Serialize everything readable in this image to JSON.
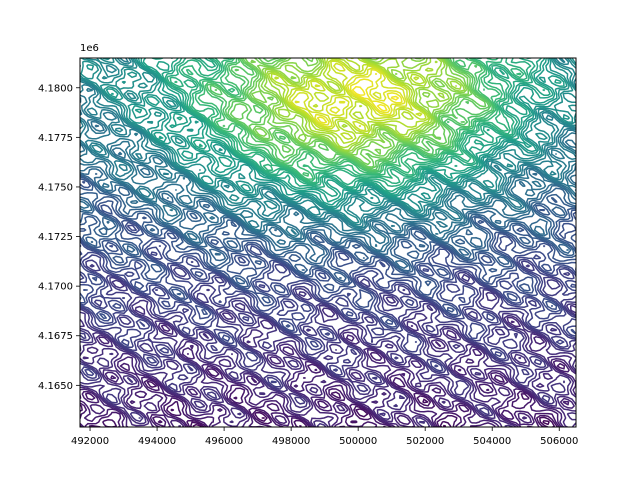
{
  "chart_data": {
    "type": "contour",
    "title": "",
    "xlabel": "",
    "ylabel": "",
    "xlim": [
      491700,
      506500
    ],
    "ylim": [
      4162900,
      4181500
    ],
    "y_offset_label": "1e6",
    "x_ticks": [
      492000,
      494000,
      496000,
      498000,
      500000,
      502000,
      504000,
      506000
    ],
    "x_tick_labels": [
      "492000",
      "494000",
      "496000",
      "498000",
      "500000",
      "502000",
      "504000",
      "506000"
    ],
    "y_ticks": [
      4165000,
      4167500,
      4170000,
      4172500,
      4175000,
      4177500,
      4180000
    ],
    "y_tick_labels": [
      "4.1650",
      "4.1675",
      "4.1700",
      "4.1725",
      "4.1750",
      "4.1775",
      "4.1800"
    ],
    "colormap": "viridis",
    "colormap_stops": [
      "#440154",
      "#482878",
      "#3e4989",
      "#31688e",
      "#26828e",
      "#1f9e89",
      "#35b779",
      "#6ece58",
      "#b5de2b",
      "#fde725"
    ],
    "surface": {
      "peaks": [
        {
          "x": 499600,
          "y": 4178500,
          "level": 1.0,
          "spread": 3400
        },
        {
          "x": 502000,
          "y": 4180300,
          "level": 0.6,
          "spread": 2600
        },
        {
          "x": 496500,
          "y": 4180800,
          "level": 0.5,
          "spread": 2800
        }
      ],
      "ridge": {
        "from_y": 4163000,
        "to_y": 4181500,
        "base_level": 0.05,
        "top_level": 0.5
      },
      "contour_levels": 60,
      "grid": false,
      "legend": false
    }
  }
}
